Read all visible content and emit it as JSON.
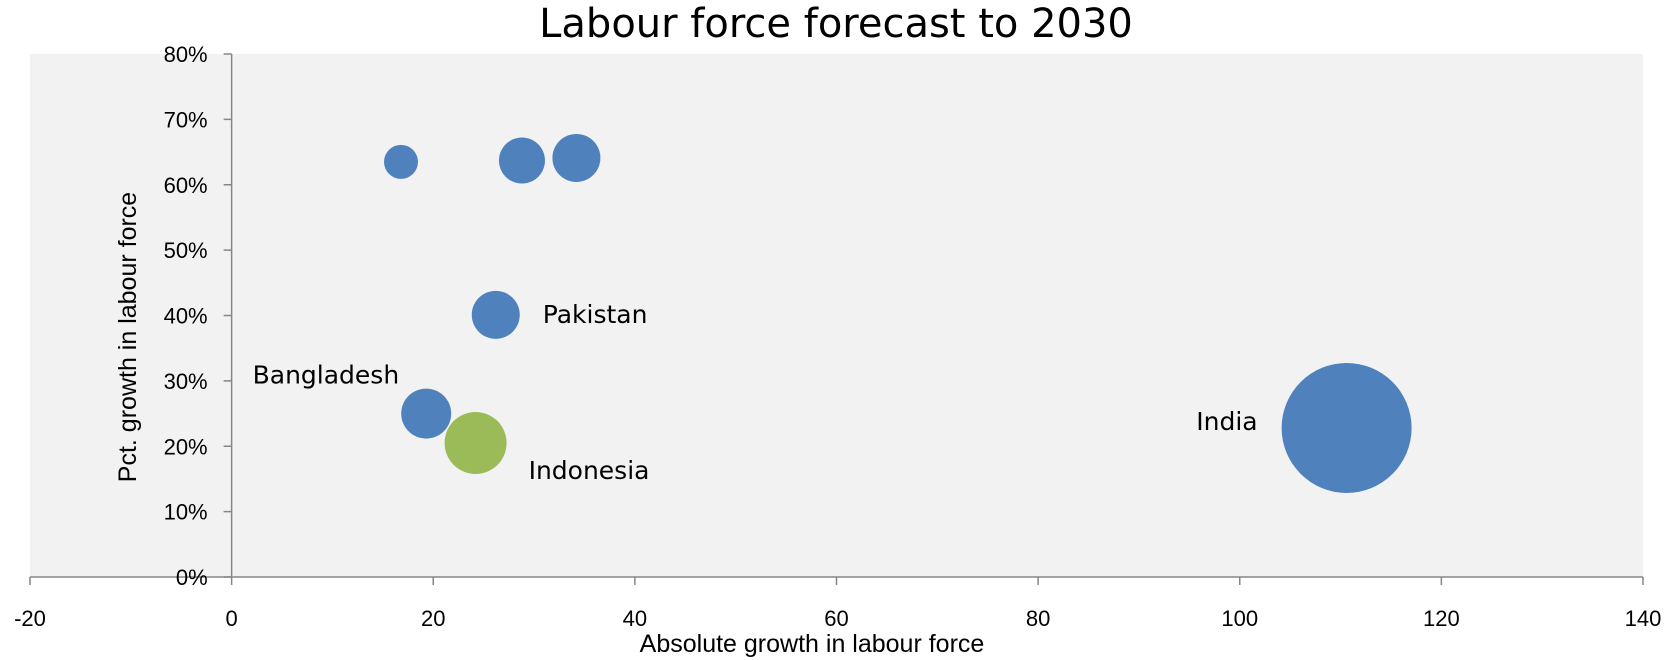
{
  "chart_data": {
    "type": "bubble",
    "title": "Labour force forecast to 2030",
    "xlabel": "Absolute growth in labour force",
    "ylabel": "Pct. growth in labour force",
    "xlim": [
      -20,
      140
    ],
    "ylim": [
      0,
      0.8
    ],
    "x_ticks": [
      "-20",
      "0",
      "20",
      "40",
      "60",
      "80",
      "100",
      "120",
      "140"
    ],
    "y_ticks": [
      "0%",
      "10%",
      "20%",
      "30%",
      "40%",
      "50%",
      "60%",
      "70%",
      "80%"
    ],
    "grid": false,
    "plot_background": "#f2f2f2",
    "colors": {
      "default": "#4f81bd",
      "highlight": "#9bbb59"
    },
    "points": [
      {
        "label": "",
        "x": 16.8,
        "y": 0.635,
        "r": 17
      },
      {
        "label": "",
        "x": 28.8,
        "y": 0.637,
        "r": 23
      },
      {
        "label": "",
        "x": 34.2,
        "y": 0.641,
        "r": 24
      },
      {
        "label": "Pakistan",
        "x": 26.2,
        "y": 0.401,
        "r": 24,
        "label_side": "right"
      },
      {
        "label": "Bangladesh",
        "x": 19.3,
        "y": 0.25,
        "r": 25,
        "label_side": "upper-left"
      },
      {
        "label": "Indonesia",
        "x": 24.2,
        "y": 0.205,
        "r": 31,
        "label_side": "lower-right",
        "highlight": true
      },
      {
        "label": "India",
        "x": 110.6,
        "y": 0.228,
        "r": 65,
        "label_side": "left"
      }
    ]
  }
}
